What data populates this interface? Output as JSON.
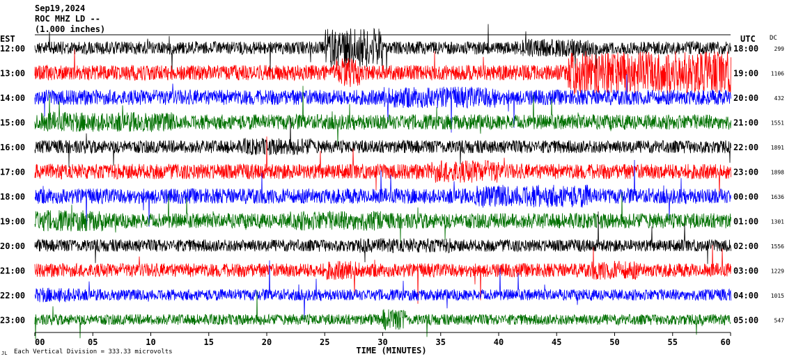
{
  "header": {
    "date": "Sep19,2024",
    "station": "ROC MHZ LD --",
    "scale": "(1.000 inches)",
    "left_zone": "EST",
    "right_zone": "UTC",
    "dc_label": "DC"
  },
  "footer": {
    "note_mark": "JL",
    "division_note": "Each Vertical Division = 333.33 microvolts"
  },
  "chart_data": {
    "type": "line",
    "title": "",
    "xlabel": "TIME (MINUTES)",
    "ylabel": "",
    "xlim": [
      0,
      60
    ],
    "x_ticks": [
      "00",
      "05",
      "10",
      "15",
      "20",
      "25",
      "30",
      "35",
      "40",
      "45",
      "50",
      "55",
      "60"
    ],
    "row_colors": [
      "#000000",
      "#ff0000",
      "#0000ff",
      "#007000"
    ],
    "rows": [
      {
        "left": "12:00",
        "right": "18:00",
        "dc": "299",
        "color": "#000000",
        "amp": 0.85,
        "bursts": [
          [
            25,
            30,
            3.0
          ],
          [
            42,
            48,
            1.4
          ]
        ]
      },
      {
        "left": "13:00",
        "right": "19:00",
        "dc": "1106",
        "color": "#ff0000",
        "amp": 1.0,
        "bursts": [
          [
            46,
            60,
            2.8
          ],
          [
            26,
            28,
            2.0
          ]
        ]
      },
      {
        "left": "14:00",
        "right": "20:00",
        "dc": "432",
        "color": "#0000ff",
        "amp": 1.0,
        "bursts": [
          [
            30,
            40,
            1.4
          ]
        ]
      },
      {
        "left": "15:00",
        "right": "21:00",
        "dc": "1551",
        "color": "#007000",
        "amp": 1.0,
        "bursts": [
          [
            0,
            12,
            1.3
          ]
        ]
      },
      {
        "left": "16:00",
        "right": "22:00",
        "dc": "1891",
        "color": "#000000",
        "amp": 0.85,
        "bursts": [
          [
            18,
            24,
            1.3
          ]
        ]
      },
      {
        "left": "17:00",
        "right": "23:00",
        "dc": "1898",
        "color": "#ff0000",
        "amp": 1.0,
        "bursts": [
          [
            34,
            40,
            1.5
          ]
        ]
      },
      {
        "left": "18:00",
        "right": "00:00",
        "dc": "1636",
        "color": "#0000ff",
        "amp": 1.0,
        "bursts": [
          [
            38,
            48,
            1.5
          ]
        ]
      },
      {
        "left": "19:00",
        "right": "01:00",
        "dc": "1301",
        "color": "#007000",
        "amp": 1.0,
        "bursts": [
          [
            0,
            6,
            1.4
          ],
          [
            22,
            30,
            1.3
          ]
        ]
      },
      {
        "left": "20:00",
        "right": "02:00",
        "dc": "1556",
        "color": "#000000",
        "amp": 0.8,
        "bursts": [
          [
            28,
            36,
            1.2
          ]
        ]
      },
      {
        "left": "21:00",
        "right": "03:00",
        "dc": "1229",
        "color": "#ff0000",
        "amp": 0.9,
        "bursts": [
          [
            25,
            28,
            1.4
          ],
          [
            48,
            52,
            1.4
          ]
        ]
      },
      {
        "left": "22:00",
        "right": "04:00",
        "dc": "1015",
        "color": "#0000ff",
        "amp": 0.75,
        "bursts": [
          [
            0,
            4,
            1.3
          ]
        ]
      },
      {
        "left": "23:00",
        "right": "05:00",
        "dc": "547",
        "color": "#007000",
        "amp": 0.7,
        "bursts": [
          [
            30,
            32,
            2.0
          ]
        ]
      }
    ]
  }
}
